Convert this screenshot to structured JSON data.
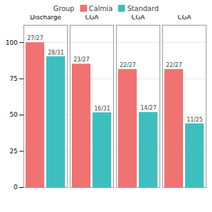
{
  "chart_data": {
    "type": "bar",
    "categories": [
      "Discharge",
      "Two Weeks CGA",
      "Six Weeks CGA",
      "Twelve Weeks CGA"
    ],
    "series": [
      {
        "name": "Calmia",
        "color": "#F07272",
        "values": [
          100.0,
          85.19,
          81.48,
          81.48
        ],
        "value_labels": [
          "27/27",
          "23/27",
          "22/27",
          "22/27"
        ]
      },
      {
        "name": "Standard",
        "color": "#3DBFBF",
        "values": [
          90.32,
          51.61,
          51.85,
          44.0
        ],
        "value_labels": [
          "28/31",
          "16/31",
          "14/27",
          "11/25"
        ]
      }
    ],
    "ylim": [
      0,
      112
    ],
    "yticks": [
      0,
      25,
      50,
      75,
      100
    ],
    "grid": true,
    "legend": "top",
    "legend_title": "Group"
  }
}
